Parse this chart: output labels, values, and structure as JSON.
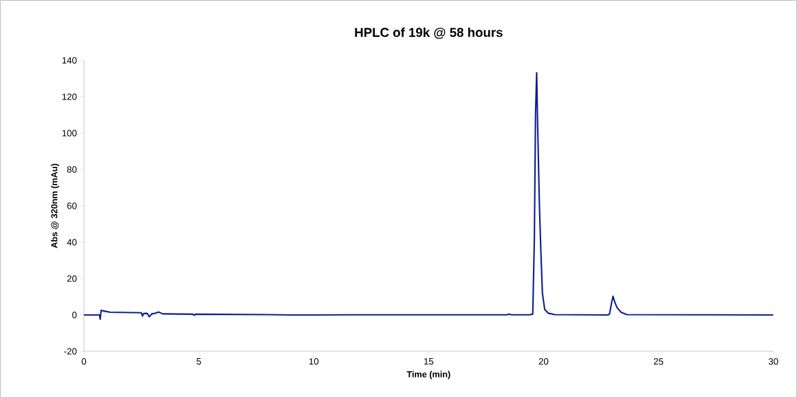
{
  "chart_data": {
    "type": "line",
    "title": "HPLC of 19k @ 58 hours",
    "xlabel": "Time (min)",
    "ylabel": "Abs @ 320nm (mAu)",
    "xlim": [
      0,
      30
    ],
    "xticks": [
      0,
      5,
      10,
      15,
      20,
      25,
      30
    ],
    "ylim": [
      -20,
      140
    ],
    "yticks": [
      -20,
      0,
      20,
      40,
      60,
      80,
      100,
      120,
      140
    ],
    "marker": "none",
    "line_style": "solid",
    "series": [
      {
        "color": "#0d1f96",
        "x": [
          0,
          0.68,
          0.71,
          0.74,
          0.76,
          0.85,
          1.14,
          1.6,
          2.0,
          2.5,
          2.55,
          2.6,
          2.75,
          2.85,
          2.95,
          3.1,
          3.25,
          3.43,
          4.0,
          4.75,
          4.8,
          4.85,
          6.0,
          8.0,
          9.0,
          10.0,
          12.0,
          15.0,
          18.4,
          18.5,
          18.6,
          19.4,
          19.53,
          19.6,
          19.65,
          19.7,
          19.75,
          19.82,
          19.88,
          19.95,
          20.05,
          20.2,
          20.49,
          22.8,
          22.87,
          22.95,
          23.02,
          23.1,
          23.2,
          23.37,
          23.62,
          27.0,
          30.0
        ],
        "values": [
          0,
          0,
          -2.3,
          1.5,
          2.6,
          2.2,
          1.5,
          1.4,
          1.3,
          1.2,
          -0.6,
          0.8,
          0.9,
          -1,
          0.6,
          0.9,
          1.6,
          0.6,
          0.5,
          0.4,
          -0.2,
          0.4,
          0.3,
          0.2,
          0,
          0,
          0.1,
          0.1,
          0.1,
          0.5,
          0.1,
          0.1,
          0.5,
          42,
          110,
          133.2,
          100,
          60,
          36,
          12,
          3,
          1,
          0.2,
          0,
          0.5,
          6,
          10.3,
          7,
          4,
          1.5,
          0.2,
          0.1,
          0
        ]
      }
    ]
  }
}
